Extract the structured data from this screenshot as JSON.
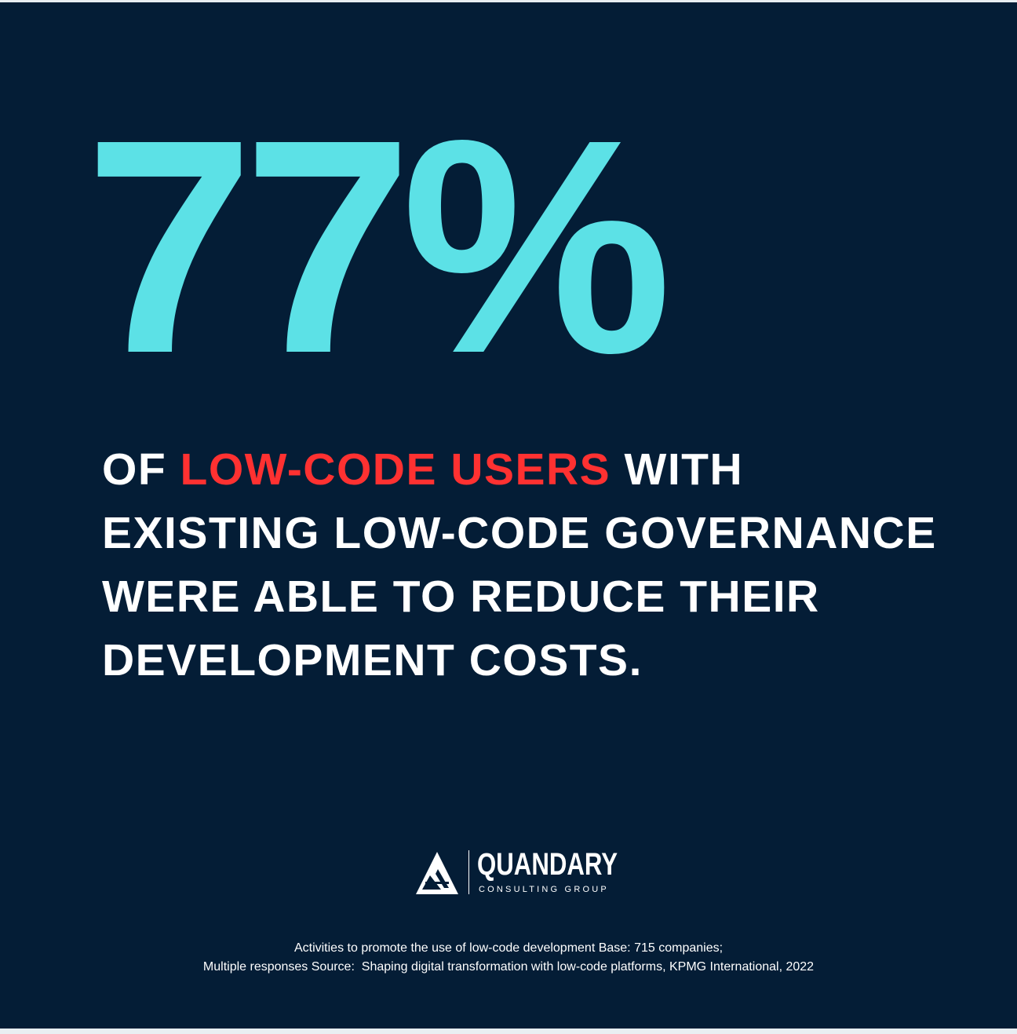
{
  "stat": {
    "value": "77%",
    "color": "#5ce1e6"
  },
  "headline": {
    "line1_pre": "OF ",
    "line1_highlight": "LOW-CODE USERS",
    "line1_post": " WITH",
    "line2": "EXISTING LOW-CODE GOVERNANCE",
    "line3": "WERE ABLE TO REDUCE THEIR",
    "line4": "DEVELOPMENT COSTS.",
    "highlight_color": "#ff3131"
  },
  "logo": {
    "name": "QUANDARY",
    "subtitle": "CONSULTING GROUP",
    "icon": "triangle-mark-icon"
  },
  "footer": {
    "line1": "Activities to promote the use of low-code development Base: 715 companies;",
    "line2": "Multiple responses Source:  Shaping digital transformation with low-code platforms, KPMG International, 2022"
  },
  "colors": {
    "background": "#041d36",
    "text": "#ffffff"
  }
}
